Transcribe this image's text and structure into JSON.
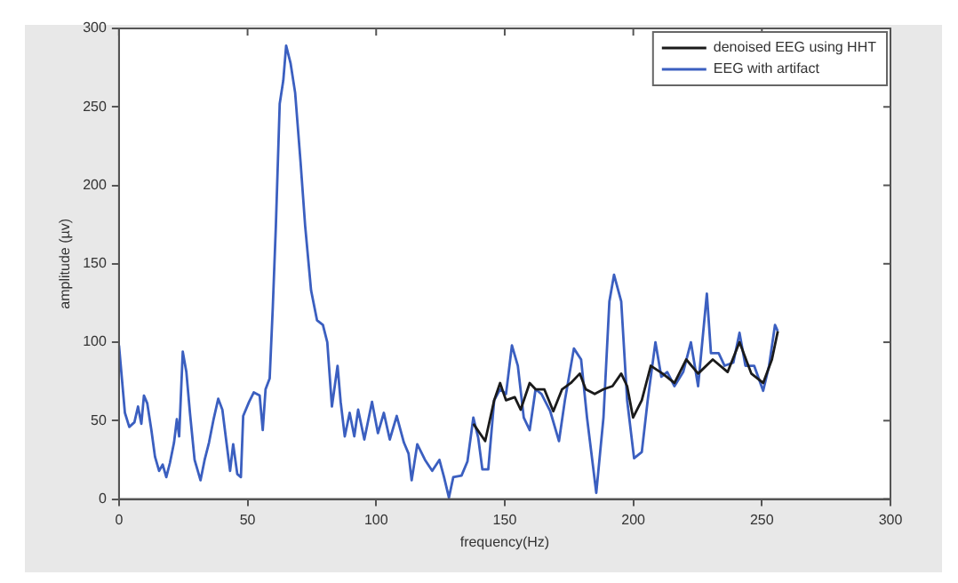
{
  "chart_data": {
    "type": "line",
    "xlabel": "frequency(Hz)",
    "ylabel": "amplitude (µv)",
    "xlim": [
      0,
      300
    ],
    "xticks": [
      0,
      50,
      100,
      150,
      200,
      250,
      300
    ],
    "ylim": [
      0,
      300
    ],
    "yticks": [
      0,
      50,
      100,
      150,
      200,
      250,
      300
    ],
    "grid": false,
    "legend": "top right",
    "marker": "none",
    "line_style": "solid",
    "series": [
      {
        "name": "denoised EEG using HHT",
        "color": "#1a1a1a",
        "x": [
          137.8,
          142.4,
          145.9,
          148.2,
          150.5,
          153.9,
          156.2,
          159.7,
          162,
          165.4,
          168.9,
          172.3,
          175.7,
          179.2,
          181.5,
          185,
          188.4,
          191.9,
          195.3,
          197.6,
          199.9,
          203.3,
          206.8,
          211.4,
          216,
          220.6,
          225.2,
          230.9,
          236.7,
          241.3,
          245.9,
          250.5,
          253.9,
          256.2
        ],
        "values": [
          48,
          37,
          63,
          74,
          63,
          65,
          57,
          74,
          70,
          70,
          56,
          70,
          74,
          80,
          70,
          67,
          70,
          72,
          80,
          72,
          52,
          63,
          85,
          80,
          74,
          89,
          80,
          89,
          81,
          100,
          80,
          74,
          89,
          107
        ]
      },
      {
        "name": "EEG with artifact",
        "color": "#3b5fc0",
        "x": [
          0,
          2.3,
          4,
          6,
          7.4,
          8.7,
          9.7,
          11,
          12.6,
          14,
          15.6,
          17,
          18.4,
          19.8,
          21.4,
          22.5,
          23.4,
          24.8,
          26.2,
          27.6,
          29.4,
          31.7,
          33.3,
          35,
          36.8,
          38.6,
          40.2,
          41.8,
          43.2,
          44.4,
          46,
          47.4,
          48.3,
          50.6,
          52.4,
          54.7,
          55.9,
          57,
          58.6,
          59.8,
          61,
          62.5,
          63.9,
          65,
          66.7,
          68.5,
          70.6,
          72.4,
          74.7,
          77,
          79.3,
          81,
          82.8,
          85,
          86.2,
          87.8,
          89.7,
          91.5,
          93,
          95.4,
          98.4,
          100.7,
          103,
          105.3,
          108,
          110.8,
          112.6,
          113.8,
          116,
          119,
          121.8,
          124.6,
          126.4,
          128.3,
          130,
          133.2,
          135.5,
          137.8,
          139.7,
          141.3,
          143.6,
          145.9,
          148.2,
          150.5,
          152.8,
          155.1,
          157.4,
          159.7,
          162,
          164.3,
          167.7,
          171.1,
          173.4,
          176.9,
          179.7,
          182,
          185.6,
          188.4,
          190.7,
          192.5,
          195.3,
          197.6,
          200.3,
          203.3,
          205.6,
          208.6,
          210.9,
          213.2,
          216,
          219.4,
          222.4,
          225.2,
          228.6,
          230.2,
          233.2,
          235.5,
          238.9,
          241.3,
          243.6,
          247,
          250.5,
          252.8,
          255.1,
          256.2
        ],
        "values": [
          98,
          55,
          46,
          49,
          59,
          48,
          66,
          61,
          44,
          27,
          18,
          22,
          14,
          23,
          36,
          51,
          40,
          94,
          81,
          55,
          25,
          12,
          25,
          36,
          51,
          64,
          57,
          36,
          18,
          35,
          16,
          14,
          53,
          62,
          68,
          66,
          44,
          70,
          77,
          122,
          174,
          252,
          267,
          289,
          278,
          259,
          215,
          174,
          133,
          114,
          111,
          100,
          59,
          85,
          62,
          40,
          55,
          40,
          57,
          38,
          62,
          42,
          55,
          38,
          53,
          36,
          29,
          12,
          35,
          25,
          18,
          25,
          14,
          1,
          14,
          15,
          24,
          52,
          39,
          19,
          19,
          63,
          70,
          67,
          98,
          85,
          52,
          44,
          70,
          67,
          56,
          37,
          63,
          96,
          89,
          52,
          4,
          52,
          126,
          143,
          126,
          63,
          26,
          30,
          63,
          100,
          78,
          81,
          72,
          81,
          100,
          72,
          131,
          93,
          93,
          85,
          87,
          106,
          85,
          85,
          69,
          85,
          111,
          107
        ]
      }
    ]
  }
}
